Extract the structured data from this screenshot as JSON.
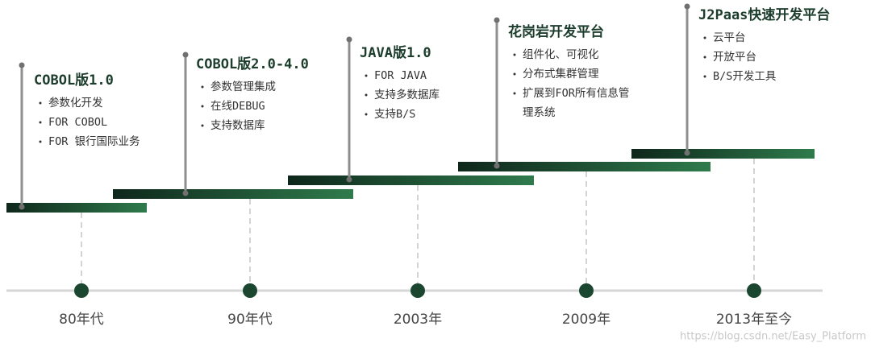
{
  "stages": [
    {
      "era": "80年代",
      "title": "COBOL版1.0",
      "items": [
        [
          "参数化开发"
        ],
        [
          "FOR COBOL"
        ],
        [
          "FOR 银行国际业务"
        ]
      ]
    },
    {
      "era": "90年代",
      "title": "COBOL版2.0-4.0",
      "items": [
        [
          "参数管理集成"
        ],
        [
          "在线DEBUG"
        ],
        [
          "支持数据库"
        ]
      ]
    },
    {
      "era": "2003年",
      "title": "JAVA版1.0",
      "items": [
        [
          "FOR JAVA"
        ],
        [
          "支持多数据库"
        ],
        [
          "支持B/S"
        ]
      ]
    },
    {
      "era": "2009年",
      "title": "花岗岩开发平台",
      "items": [
        [
          "组件化、可视化"
        ],
        [
          "分布式集群管理"
        ],
        [
          "扩展到FOR所有信息管",
          "理系统"
        ]
      ]
    },
    {
      "era": "2013年至今",
      "title": "J2Paas快速开发平台",
      "items": [
        [
          "云平台"
        ],
        [
          "开放平台"
        ],
        [
          "B/S开发工具"
        ]
      ]
    }
  ],
  "watermark": "https://blog.csdn.net/Easy_Platform"
}
